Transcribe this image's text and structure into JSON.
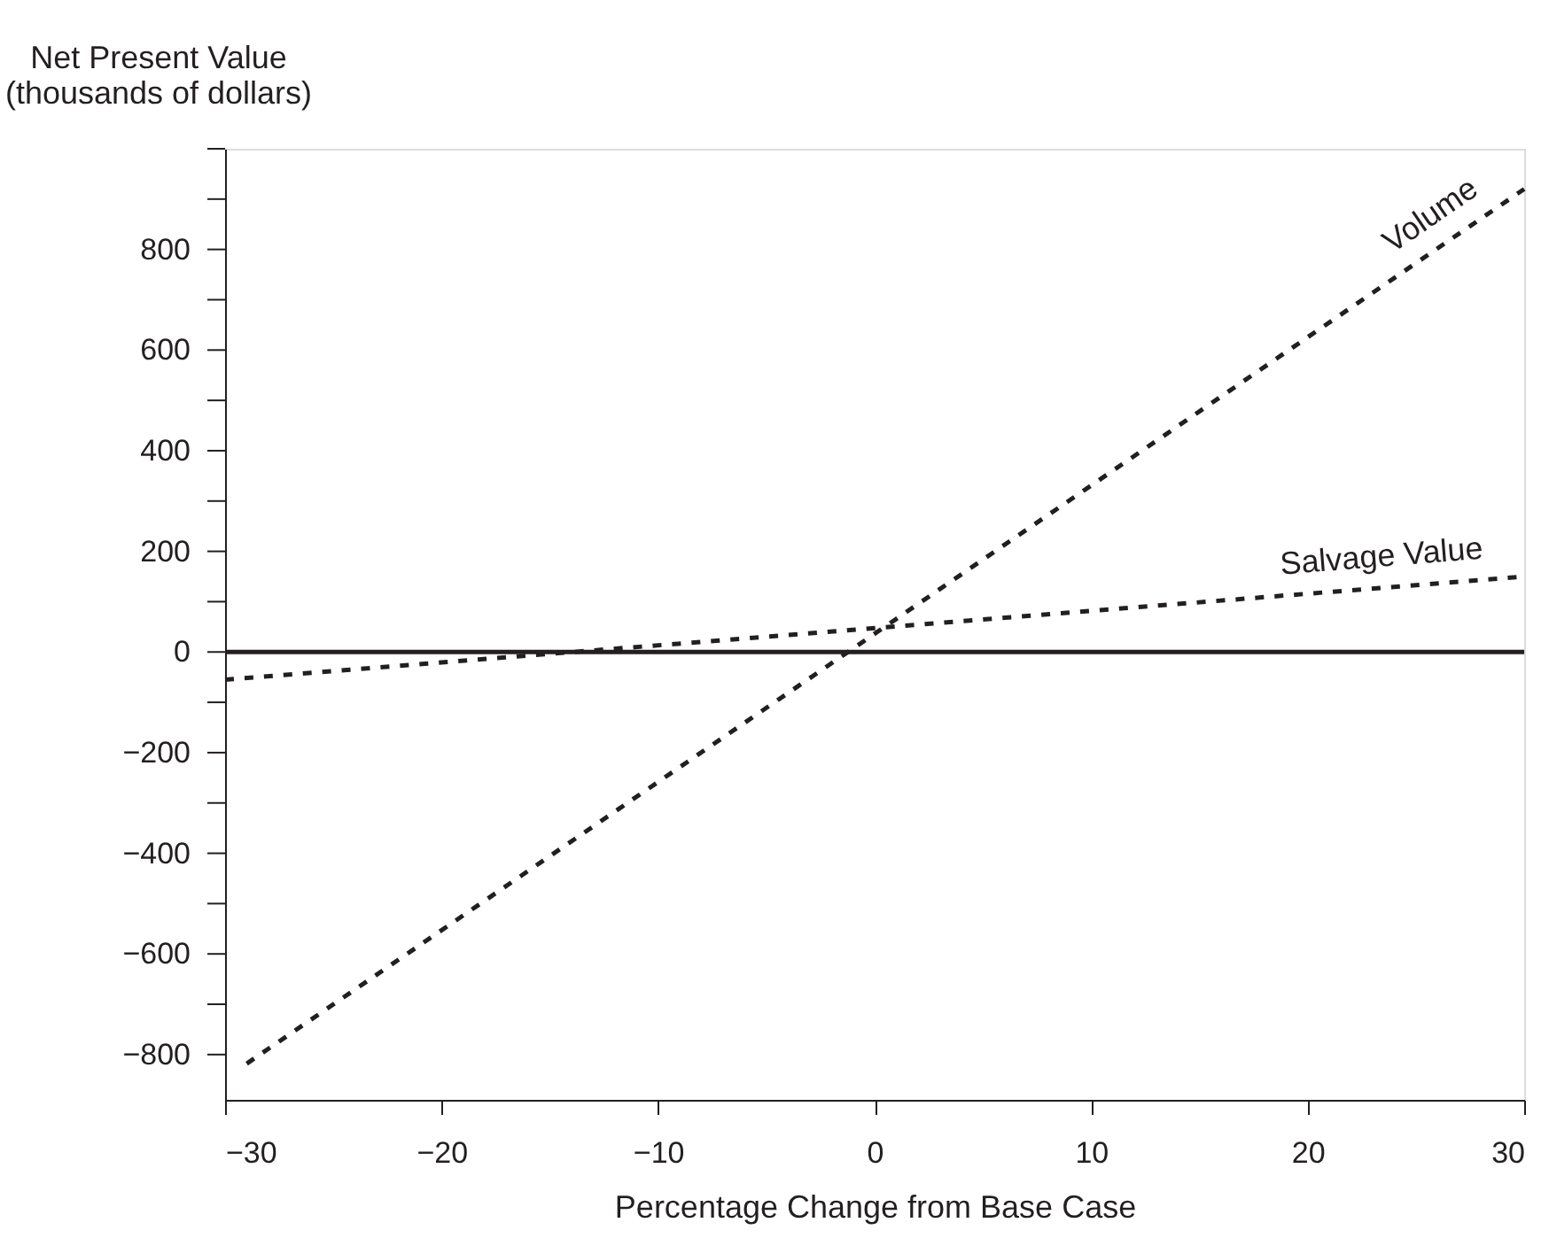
{
  "chart_data": {
    "type": "line",
    "xlabel": "Percentage Change from Base Case",
    "ylabel": "Net Present Value\n(thousands of dollars)",
    "series": [
      {
        "name": "Volume",
        "color": "#231f20",
        "x": [
          -29,
          30
        ],
        "values": [
          -818,
          920
        ]
      },
      {
        "name": "Salvage Value",
        "color": "#231f20",
        "x": [
          -30,
          30
        ],
        "values": [
          -55,
          150
        ]
      }
    ],
    "line_style": "dashed",
    "marker": "none",
    "xlim": [
      -30,
      30
    ],
    "xticks": [
      {
        "value": -30,
        "label": "−30"
      },
      {
        "value": -20,
        "label": "−20"
      },
      {
        "value": -10,
        "label": "−10"
      },
      0,
      10,
      20,
      30
    ],
    "ylim": [
      -890,
      1000
    ],
    "yticks": [
      {
        "value": -800,
        "label": "−800"
      },
      {
        "value": -700,
        "label": null
      },
      {
        "value": -600,
        "label": "−600"
      },
      {
        "value": -500,
        "label": null
      },
      {
        "value": -400,
        "label": "−400"
      },
      {
        "value": -300,
        "label": null
      },
      {
        "value": -200,
        "label": "−200"
      },
      {
        "value": -100,
        "label": null
      },
      0,
      {
        "value": 100,
        "label": null
      },
      200,
      {
        "value": 300,
        "label": null
      },
      400,
      {
        "value": 500,
        "label": null
      },
      600,
      {
        "value": 700,
        "label": null
      },
      800,
      {
        "value": 900,
        "label": null
      },
      {
        "value": 1000,
        "label": null
      }
    ],
    "ref_lines": [
      {
        "axis": "y",
        "value": 0,
        "color": "#231f20",
        "line_style": "solid"
      }
    ],
    "grid": false
  }
}
